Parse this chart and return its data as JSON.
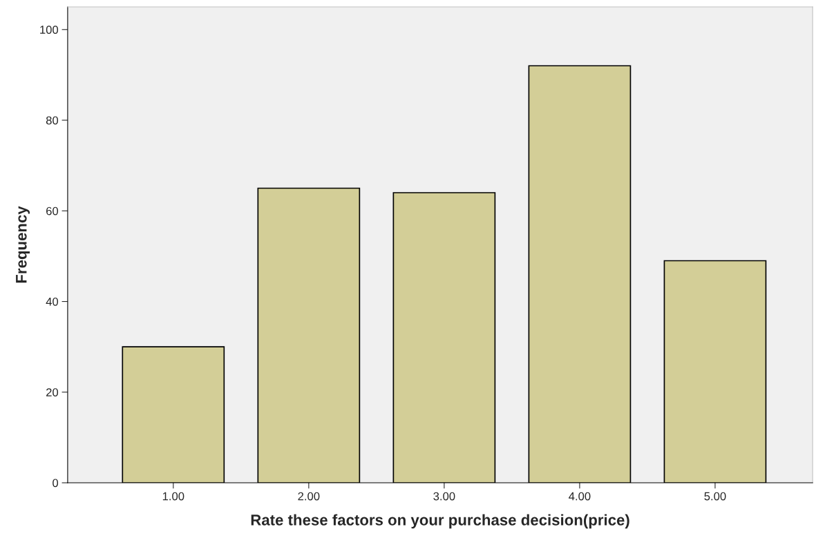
{
  "chart_data": {
    "type": "bar",
    "xlabel": "Rate these factors on your purchase decision(price)",
    "ylabel": "Frequency",
    "categories": [
      "1.00",
      "2.00",
      "3.00",
      "4.00",
      "5.00"
    ],
    "values": [
      30,
      65,
      64,
      92,
      49
    ],
    "color": "#d3ce97",
    "ylim": [
      0,
      105
    ],
    "yticks": [
      0,
      20,
      40,
      60,
      80,
      100
    ],
    "grid": false,
    "legend": false
  }
}
